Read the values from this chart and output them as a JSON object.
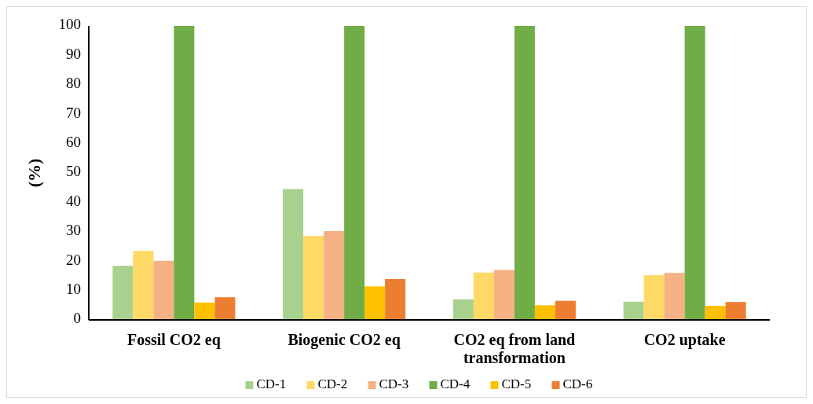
{
  "chart_data": {
    "type": "bar",
    "ylabel": "(%)",
    "categories": [
      "Fossil CO2 eq",
      "Biogenic CO2 eq",
      "CO2 eq from land transformation",
      "CO2 uptake"
    ],
    "series": [
      {
        "name": "CD-1",
        "color": "#a9d18e",
        "values": [
          18.4,
          44.5,
          7.0,
          6.2
        ]
      },
      {
        "name": "CD-2",
        "color": "#ffd966",
        "values": [
          23.5,
          28.6,
          16.1,
          15.2
        ]
      },
      {
        "name": "CD-3",
        "color": "#f4b183",
        "values": [
          20.1,
          30.2,
          17.0,
          16.0
        ]
      },
      {
        "name": "CD-4",
        "color": "#70ad47",
        "values": [
          100,
          100,
          100,
          100
        ]
      },
      {
        "name": "CD-5",
        "color": "#ffc000",
        "values": [
          5.9,
          11.4,
          5.0,
          4.8
        ]
      },
      {
        "name": "CD-6",
        "color": "#ed7d31",
        "values": [
          7.7,
          13.9,
          6.5,
          6.1
        ]
      }
    ],
    "ylim": [
      0,
      100
    ],
    "yticks": [
      0,
      10,
      20,
      30,
      40,
      50,
      60,
      70,
      80,
      90,
      100
    ],
    "grid": false,
    "legend": "bottom"
  }
}
